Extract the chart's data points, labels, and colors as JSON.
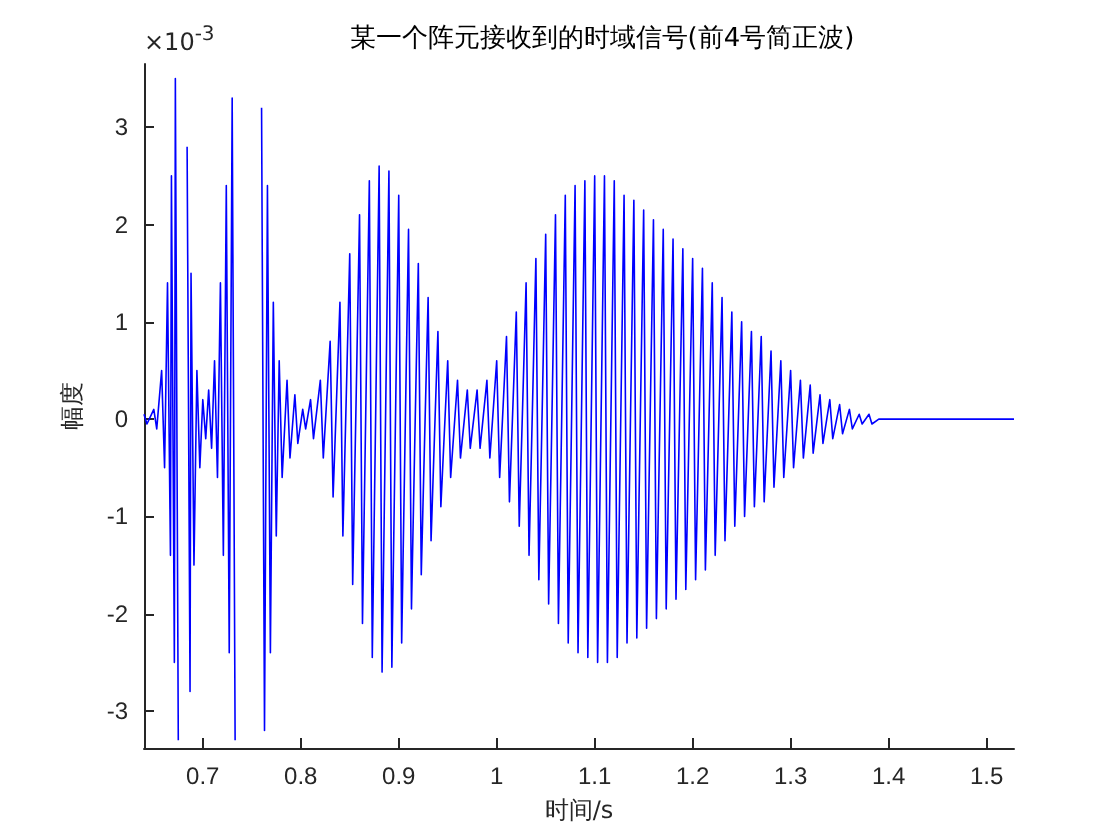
{
  "chart_data": {
    "type": "line",
    "title": "某一个阵元接收到的时域信号(前4号简正波)",
    "xlabel": "时间/s",
    "ylabel": "幅度",
    "annotations": [
      "×10$^{-3}$"
    ],
    "xlim": [
      0.64,
      1.528
    ],
    "xticks": [
      0.7,
      0.8,
      0.9,
      1,
      1.1,
      1.2,
      1.3,
      1.4,
      1.5
    ],
    "ylim": [
      -3.38,
      3.65
    ],
    "yticks": [
      -3,
      -2,
      -1,
      0,
      1,
      2,
      3
    ],
    "grid": false,
    "series": [
      {
        "color": "#0000ff",
        "x": [
          0.64,
          0.643,
          0.65,
          0.653,
          0.658,
          0.661,
          0.664,
          0.667,
          0.668,
          0.671,
          0.672,
          0.675,
          0.676,
          0.679,
          0.68,
          0.683,
          0.684,
          0.687,
          0.688,
          0.691,
          0.694,
          0.697,
          0.7,
          0.703,
          0.706,
          0.709,
          0.712,
          0.715,
          0.718,
          0.721,
          0.724,
          0.727,
          0.73,
          0.733,
          0.736,
          0.739,
          0.742,
          0.745,
          0.748,
          0.751,
          0.754,
          0.757,
          0.76,
          0.763,
          0.766,
          0.769,
          0.772,
          0.775,
          0.778,
          0.781,
          0.786,
          0.789,
          0.794,
          0.797,
          0.802,
          0.805,
          0.81,
          0.813,
          0.82,
          0.823,
          0.83,
          0.833,
          0.84,
          0.843,
          0.85,
          0.853,
          0.86,
          0.863,
          0.87,
          0.873,
          0.88,
          0.883,
          0.89,
          0.893,
          0.9,
          0.903,
          0.91,
          0.913,
          0.92,
          0.923,
          0.93,
          0.933,
          0.94,
          0.943,
          0.95,
          0.953,
          0.96,
          0.963,
          0.97,
          0.973,
          0.98,
          0.983,
          0.99,
          0.993,
          1.0,
          1.003,
          1.01,
          1.013,
          1.02,
          1.023,
          1.03,
          1.033,
          1.04,
          1.043,
          1.05,
          1.053,
          1.06,
          1.063,
          1.07,
          1.073,
          1.08,
          1.083,
          1.09,
          1.093,
          1.1,
          1.103,
          1.11,
          1.113,
          1.12,
          1.123,
          1.13,
          1.133,
          1.14,
          1.143,
          1.15,
          1.153,
          1.16,
          1.163,
          1.17,
          1.173,
          1.18,
          1.183,
          1.19,
          1.193,
          1.2,
          1.203,
          1.21,
          1.213,
          1.22,
          1.223,
          1.23,
          1.233,
          1.24,
          1.243,
          1.25,
          1.253,
          1.26,
          1.263,
          1.27,
          1.273,
          1.28,
          1.283,
          1.29,
          1.293,
          1.3,
          1.303,
          1.31,
          1.313,
          1.32,
          1.323,
          1.33,
          1.333,
          1.34,
          1.343,
          1.35,
          1.353,
          1.36,
          1.363,
          1.37,
          1.373,
          1.38,
          1.383,
          1.39,
          1.393,
          1.4,
          1.403,
          1.45,
          1.528
        ],
        "values": [
          0.05,
          -0.05,
          0.1,
          -0.1,
          0.5,
          -0.5,
          1.4,
          -1.4,
          2.5,
          -2.5,
          3.5,
          -3.3,
          null,
          null,
          null,
          null,
          2.8,
          -2.8,
          1.5,
          -1.5,
          0.5,
          -0.5,
          0.2,
          -0.2,
          0.3,
          -0.3,
          0.6,
          -0.6,
          1.4,
          -1.4,
          2.4,
          -2.4,
          3.3,
          -3.3,
          null,
          null,
          null,
          null,
          null,
          null,
          null,
          null,
          3.2,
          -3.2,
          2.4,
          -2.4,
          1.2,
          -1.2,
          0.6,
          -0.6,
          0.4,
          -0.4,
          0.25,
          -0.25,
          0.1,
          -0.1,
          0.2,
          -0.2,
          0.4,
          -0.4,
          0.8,
          -0.8,
          1.2,
          -1.2,
          1.7,
          -1.7,
          2.1,
          -2.1,
          2.45,
          -2.45,
          2.6,
          -2.6,
          2.55,
          -2.55,
          2.3,
          -2.3,
          1.95,
          -1.95,
          1.6,
          -1.6,
          1.25,
          -1.25,
          0.9,
          -0.9,
          0.6,
          -0.6,
          0.4,
          -0.4,
          0.3,
          -0.3,
          0.3,
          -0.3,
          0.4,
          -0.4,
          0.6,
          -0.6,
          0.85,
          -0.85,
          1.1,
          -1.1,
          1.4,
          -1.4,
          1.65,
          -1.65,
          1.9,
          -1.9,
          2.1,
          -2.1,
          2.3,
          -2.3,
          2.4,
          -2.4,
          2.45,
          -2.45,
          2.5,
          -2.5,
          2.5,
          -2.5,
          2.45,
          -2.45,
          2.3,
          -2.3,
          2.25,
          -2.25,
          2.15,
          -2.15,
          2.05,
          -2.05,
          1.95,
          -1.95,
          1.85,
          -1.85,
          1.75,
          -1.75,
          1.65,
          -1.65,
          1.55,
          -1.55,
          1.4,
          -1.4,
          1.25,
          -1.25,
          1.1,
          -1.1,
          1,
          -1,
          0.9,
          -0.9,
          0.85,
          -0.85,
          0.7,
          -0.7,
          0.6,
          -0.6,
          0.5,
          -0.5,
          0.4,
          -0.4,
          0.35,
          -0.35,
          0.25,
          -0.25,
          0.2,
          -0.2,
          0.15,
          -0.15,
          0.1,
          -0.1,
          0.05,
          -0.05,
          0.05,
          -0.05,
          0,
          0,
          0,
          0,
          0,
          0
        ]
      }
    ]
  }
}
